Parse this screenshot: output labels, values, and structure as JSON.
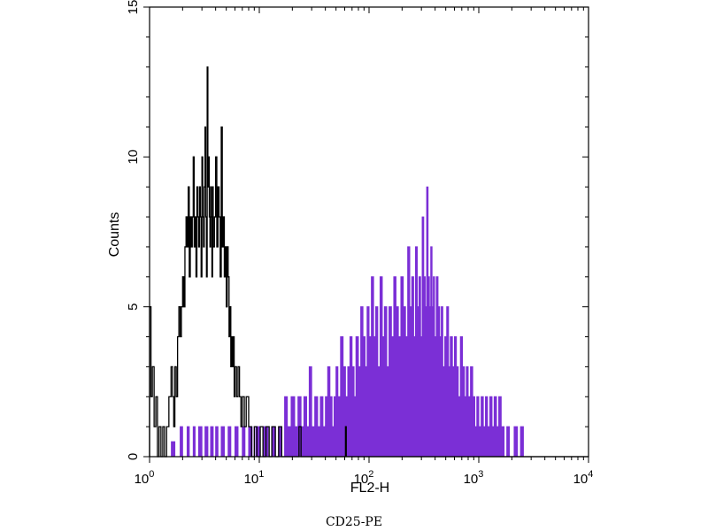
{
  "chart_data": {
    "type": "histogram",
    "x_scale": "log",
    "xlim": [
      1,
      10000
    ],
    "ylim": [
      0,
      15
    ],
    "xlabel": "FL2-H",
    "ylabel": "Counts",
    "x_ticks": [
      {
        "value": 1,
        "base": "10",
        "exp": "0"
      },
      {
        "value": 10,
        "base": "10",
        "exp": "1"
      },
      {
        "value": 100,
        "base": "10",
        "exp": "2"
      },
      {
        "value": 1000,
        "base": "10",
        "exp": "3"
      },
      {
        "value": 10000,
        "base": "10",
        "exp": "4"
      }
    ],
    "y_ticks": [
      {
        "value": 0,
        "label": "0"
      },
      {
        "value": 5,
        "label": "5"
      },
      {
        "value": 10,
        "label": "10"
      },
      {
        "value": 15,
        "label": "15"
      }
    ],
    "grid": false,
    "series": [
      {
        "style": "outline",
        "color": "#000000",
        "points": [
          [
            1.0,
            5.0
          ],
          [
            1.03,
            2.0
          ],
          [
            1.06,
            3.0
          ],
          [
            1.1,
            1.0
          ],
          [
            1.14,
            2.0
          ],
          [
            1.18,
            0.0
          ],
          [
            1.22,
            1.0
          ],
          [
            1.27,
            0.0
          ],
          [
            1.32,
            1.0
          ],
          [
            1.37,
            0.0
          ],
          [
            1.43,
            1.0
          ],
          [
            1.5,
            2.0
          ],
          [
            1.57,
            3.0
          ],
          [
            1.62,
            2.0
          ],
          [
            1.66,
            1.0
          ],
          [
            1.7,
            3.0
          ],
          [
            1.75,
            2.0
          ],
          [
            1.8,
            4.0
          ],
          [
            1.85,
            5.0
          ],
          [
            1.9,
            4.0
          ],
          [
            1.95,
            5.0
          ],
          [
            2.0,
            6.0
          ],
          [
            2.05,
            5.0
          ],
          [
            2.1,
            7.0
          ],
          [
            2.15,
            8.0
          ],
          [
            2.2,
            7.0
          ],
          [
            2.25,
            9.0
          ],
          [
            2.3,
            6.0
          ],
          [
            2.35,
            8.0
          ],
          [
            2.4,
            7.0
          ],
          [
            2.45,
            8.0
          ],
          [
            2.5,
            10.0
          ],
          [
            2.55,
            7.0
          ],
          [
            2.6,
            8.0
          ],
          [
            2.65,
            6.0
          ],
          [
            2.7,
            9.0
          ],
          [
            2.75,
            8.0
          ],
          [
            2.8,
            7.0
          ],
          [
            2.85,
            9.0
          ],
          [
            2.9,
            8.0
          ],
          [
            2.95,
            6.0
          ],
          [
            3.0,
            10.0
          ],
          [
            3.05,
            8.0
          ],
          [
            3.1,
            7.0
          ],
          [
            3.15,
            9.0
          ],
          [
            3.2,
            11.0
          ],
          [
            3.25,
            8.0
          ],
          [
            3.3,
            6.0
          ],
          [
            3.35,
            13.0
          ],
          [
            3.4,
            9.0
          ],
          [
            3.45,
            10.0
          ],
          [
            3.5,
            8.0
          ],
          [
            3.55,
            7.0
          ],
          [
            3.6,
            9.0
          ],
          [
            3.65,
            8.0
          ],
          [
            3.7,
            6.0
          ],
          [
            3.75,
            9.0
          ],
          [
            3.8,
            7.0
          ],
          [
            3.9,
            8.0
          ],
          [
            4.0,
            10.0
          ],
          [
            4.1,
            7.0
          ],
          [
            4.2,
            9.0
          ],
          [
            4.3,
            8.0
          ],
          [
            4.4,
            6.0
          ],
          [
            4.5,
            11.0
          ],
          [
            4.6,
            7.0
          ],
          [
            4.7,
            8.0
          ],
          [
            4.8,
            6.0
          ],
          [
            4.9,
            7.0
          ],
          [
            5.0,
            5.0
          ],
          [
            5.1,
            7.0
          ],
          [
            5.2,
            6.0
          ],
          [
            5.3,
            4.0
          ],
          [
            5.4,
            5.0
          ],
          [
            5.5,
            3.0
          ],
          [
            5.6,
            4.0
          ],
          [
            5.7,
            3.0
          ],
          [
            5.8,
            4.0
          ],
          [
            5.9,
            2.0
          ],
          [
            6.0,
            3.0
          ],
          [
            6.2,
            2.0
          ],
          [
            6.4,
            3.0
          ],
          [
            6.6,
            2.0
          ],
          [
            6.8,
            1.0
          ],
          [
            7.0,
            2.0
          ],
          [
            7.3,
            1.0
          ],
          [
            7.6,
            2.0
          ],
          [
            8.0,
            1.0
          ],
          [
            8.5,
            0.0
          ],
          [
            9.0,
            1.0
          ],
          [
            9.5,
            0.0
          ],
          [
            10.2,
            1.0
          ],
          [
            10.8,
            0.0
          ],
          [
            11.5,
            1.0
          ],
          [
            12.3,
            0.0
          ],
          [
            13.0,
            1.0
          ],
          [
            14.0,
            0.0
          ],
          [
            15.0,
            1.0
          ],
          [
            16.0,
            0.0
          ],
          [
            22.0,
            0.0
          ],
          [
            23.0,
            1.0
          ],
          [
            24.0,
            0.0
          ],
          [
            60.0,
            0.0
          ],
          [
            61.0,
            1.0
          ],
          [
            62.0,
            0.0
          ],
          [
            10000,
            0.0
          ]
        ]
      },
      {
        "style": "filled",
        "color": "#7b2fd6",
        "points": [
          [
            1.0,
            0.0
          ],
          [
            1.5,
            0.0
          ],
          [
            1.58,
            0.5
          ],
          [
            1.7,
            0.0
          ],
          [
            1.9,
            1.0
          ],
          [
            2.0,
            0.0
          ],
          [
            2.2,
            1.0
          ],
          [
            2.3,
            0.0
          ],
          [
            2.5,
            1.0
          ],
          [
            2.6,
            0.0
          ],
          [
            2.8,
            1.0
          ],
          [
            3.0,
            0.0
          ],
          [
            3.2,
            1.0
          ],
          [
            3.4,
            0.0
          ],
          [
            3.6,
            1.0
          ],
          [
            3.8,
            0.0
          ],
          [
            4.0,
            1.0
          ],
          [
            4.2,
            0.0
          ],
          [
            4.5,
            1.0
          ],
          [
            4.8,
            0.0
          ],
          [
            5.2,
            1.0
          ],
          [
            5.5,
            0.0
          ],
          [
            6.0,
            1.0
          ],
          [
            6.4,
            0.0
          ],
          [
            7.0,
            1.0
          ],
          [
            7.4,
            0.0
          ],
          [
            8.0,
            1.0
          ],
          [
            8.6,
            0.0
          ],
          [
            9.3,
            1.0
          ],
          [
            10.0,
            0.0
          ],
          [
            11.0,
            1.0
          ],
          [
            12.0,
            0.0
          ],
          [
            13.0,
            1.0
          ],
          [
            14.0,
            0.0
          ],
          [
            15.0,
            1.0
          ],
          [
            16.0,
            0.0
          ],
          [
            17.0,
            2.0
          ],
          [
            18.0,
            1.0
          ],
          [
            19.5,
            2.0
          ],
          [
            21.0,
            1.0
          ],
          [
            22.5,
            2.0
          ],
          [
            24.0,
            1.0
          ],
          [
            25.5,
            2.0
          ],
          [
            27.0,
            1.0
          ],
          [
            28.5,
            3.0
          ],
          [
            30.0,
            1.0
          ],
          [
            32.0,
            2.0
          ],
          [
            34.0,
            1.0
          ],
          [
            36.0,
            2.0
          ],
          [
            38.0,
            1.0
          ],
          [
            40.0,
            2.0
          ],
          [
            42.0,
            3.0
          ],
          [
            44.0,
            2.0
          ],
          [
            46.0,
            1.0
          ],
          [
            48.0,
            2.0
          ],
          [
            50.0,
            3.0
          ],
          [
            52.0,
            2.0
          ],
          [
            55.0,
            4.0
          ],
          [
            58.0,
            3.0
          ],
          [
            61.0,
            2.0
          ],
          [
            64.0,
            3.0
          ],
          [
            67.0,
            4.0
          ],
          [
            70.0,
            3.0
          ],
          [
            73.0,
            2.0
          ],
          [
            76.0,
            4.0
          ],
          [
            80.0,
            3.0
          ],
          [
            84.0,
            5.0
          ],
          [
            88.0,
            4.0
          ],
          [
            92.0,
            3.0
          ],
          [
            96.0,
            5.0
          ],
          [
            100.0,
            4.0
          ],
          [
            105.0,
            6.0
          ],
          [
            110.0,
            4.0
          ],
          [
            115.0,
            5.0
          ],
          [
            120.0,
            3.0
          ],
          [
            126.0,
            6.0
          ],
          [
            132.0,
            4.0
          ],
          [
            138.0,
            5.0
          ],
          [
            145.0,
            3.0
          ],
          [
            152.0,
            5.0
          ],
          [
            160.0,
            4.0
          ],
          [
            168.0,
            6.0
          ],
          [
            176.0,
            5.0
          ],
          [
            185.0,
            4.0
          ],
          [
            195.0,
            6.0
          ],
          [
            205.0,
            5.0
          ],
          [
            215.0,
            4.0
          ],
          [
            225.0,
            7.0
          ],
          [
            235.0,
            5.0
          ],
          [
            245.0,
            6.0
          ],
          [
            255.0,
            4.0
          ],
          [
            265.0,
            7.0
          ],
          [
            275.0,
            5.0
          ],
          [
            285.0,
            6.0
          ],
          [
            295.0,
            4.0
          ],
          [
            305.0,
            8.0
          ],
          [
            315.0,
            6.0
          ],
          [
            325.0,
            5.0
          ],
          [
            335.0,
            9.0
          ],
          [
            345.0,
            6.0
          ],
          [
            355.0,
            5.0
          ],
          [
            365.0,
            7.0
          ],
          [
            375.0,
            5.0
          ],
          [
            385.0,
            6.0
          ],
          [
            395.0,
            4.0
          ],
          [
            410.0,
            6.0
          ],
          [
            425.0,
            5.0
          ],
          [
            440.0,
            4.0
          ],
          [
            455.0,
            5.0
          ],
          [
            470.0,
            3.0
          ],
          [
            490.0,
            4.0
          ],
          [
            510.0,
            5.0
          ],
          [
            530.0,
            3.0
          ],
          [
            550.0,
            4.0
          ],
          [
            575.0,
            3.0
          ],
          [
            600.0,
            4.0
          ],
          [
            625.0,
            3.0
          ],
          [
            650.0,
            2.0
          ],
          [
            680.0,
            4.0
          ],
          [
            710.0,
            3.0
          ],
          [
            740.0,
            2.0
          ],
          [
            770.0,
            3.0
          ],
          [
            800.0,
            2.0
          ],
          [
            840.0,
            3.0
          ],
          [
            880.0,
            2.0
          ],
          [
            920.0,
            1.0
          ],
          [
            960.0,
            2.0
          ],
          [
            1000.0,
            1.0
          ],
          [
            1050.0,
            2.0
          ],
          [
            1100.0,
            1.0
          ],
          [
            1150.0,
            2.0
          ],
          [
            1200.0,
            1.0
          ],
          [
            1260.0,
            2.0
          ],
          [
            1320.0,
            1.0
          ],
          [
            1380.0,
            2.0
          ],
          [
            1450.0,
            1.0
          ],
          [
            1520.0,
            2.0
          ],
          [
            1600.0,
            1.0
          ],
          [
            1700.0,
            0.0
          ],
          [
            1800.0,
            1.0
          ],
          [
            1900.0,
            0.0
          ],
          [
            2100.0,
            1.0
          ],
          [
            2250.0,
            0.0
          ],
          [
            2400.0,
            1.0
          ],
          [
            2550.0,
            0.0
          ],
          [
            10000,
            0.0
          ]
        ]
      }
    ]
  },
  "caption": "CD25-PE"
}
